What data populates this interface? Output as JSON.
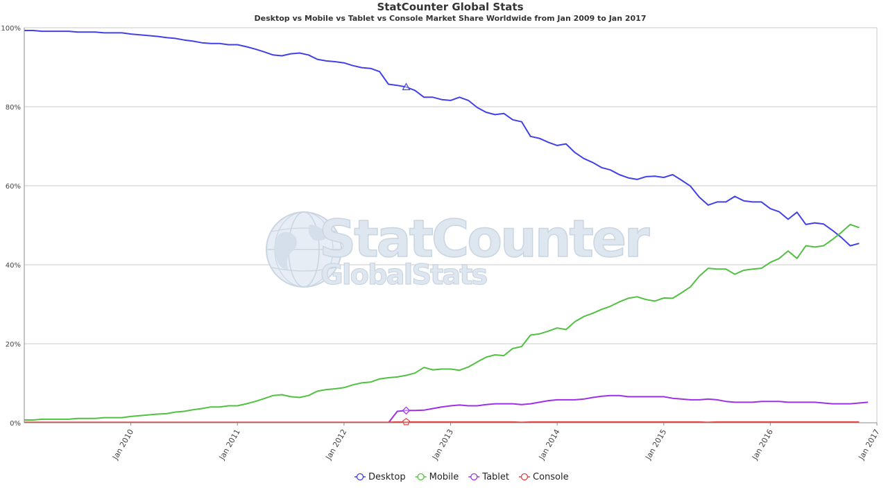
{
  "chart_data": {
    "type": "line",
    "title": "StatCounter Global Stats",
    "subtitle": "Desktop vs Mobile vs Tablet vs Console Market Share Worldwide from Jan 2009 to Jan 2017",
    "watermark": [
      "StatCounter",
      "GlobalStats"
    ],
    "x_start": "2009-01",
    "x_end": "2017-01",
    "x_tick_labels": [
      "Jan 2010",
      "Jan 2011",
      "Jan 2012",
      "Jan 2013",
      "Jan 2014",
      "Jan 2015",
      "Jan 2016",
      "Jan 2017"
    ],
    "y_tick_labels": [
      "0%",
      "20%",
      "40%",
      "60%",
      "80%",
      "100%"
    ],
    "ylim": [
      0,
      100
    ],
    "grid": true,
    "legend_position": "bottom-center",
    "series": [
      {
        "name": "Desktop",
        "color": "#4040e8",
        "marker": "triangle",
        "values": [
          99.3,
          99.3,
          99.1,
          99.1,
          99.1,
          99.1,
          98.9,
          98.9,
          98.9,
          98.7,
          98.7,
          98.7,
          98.4,
          98.2,
          98.0,
          97.8,
          97.5,
          97.3,
          96.9,
          96.6,
          96.2,
          96.0,
          96.0,
          95.7,
          95.7,
          95.2,
          94.6,
          93.9,
          93.1,
          92.9,
          93.4,
          93.6,
          93.1,
          92.0,
          91.6,
          91.4,
          91.1,
          90.4,
          89.9,
          89.7,
          88.9,
          85.7,
          85.4,
          85.0,
          84.1,
          82.4,
          82.4,
          81.8,
          81.6,
          82.4,
          81.6,
          79.8,
          78.6,
          78.0,
          78.3,
          76.7,
          76.2,
          72.5,
          72.0,
          71.0,
          70.2,
          70.6,
          68.4,
          66.9,
          65.9,
          64.6,
          64.0,
          62.8,
          62.0,
          61.6,
          62.3,
          62.4,
          62.1,
          62.8,
          61.4,
          59.9,
          57.1,
          55.1,
          55.9,
          55.9,
          57.3,
          56.2,
          55.9,
          55.9,
          54.2,
          53.4,
          51.5,
          53.3,
          50.2,
          50.6,
          50.3,
          48.7,
          46.9,
          44.8,
          45.4
        ]
      },
      {
        "name": "Mobile",
        "color": "#50c040",
        "marker": "circle",
        "values": [
          0.7,
          0.7,
          0.9,
          0.9,
          0.9,
          0.9,
          1.1,
          1.1,
          1.1,
          1.3,
          1.3,
          1.3,
          1.6,
          1.8,
          2.0,
          2.2,
          2.3,
          2.7,
          2.9,
          3.3,
          3.6,
          4.0,
          4.0,
          4.3,
          4.3,
          4.8,
          5.4,
          6.1,
          6.9,
          7.1,
          6.6,
          6.4,
          6.9,
          8.0,
          8.4,
          8.6,
          8.9,
          9.6,
          10.1,
          10.3,
          11.1,
          11.4,
          11.6,
          12.0,
          12.6,
          14.0,
          13.4,
          13.6,
          13.6,
          13.3,
          14.1,
          15.4,
          16.6,
          17.2,
          17.0,
          18.8,
          19.3,
          22.2,
          22.5,
          23.2,
          24.0,
          23.6,
          25.6,
          26.9,
          27.7,
          28.7,
          29.5,
          30.6,
          31.5,
          31.9,
          31.2,
          30.8,
          31.6,
          31.5,
          32.9,
          34.4,
          37.1,
          39.1,
          38.9,
          38.9,
          37.6,
          38.6,
          38.9,
          39.1,
          40.6,
          41.6,
          43.5,
          41.6,
          44.8,
          44.5,
          44.8,
          46.4,
          48.2,
          50.2,
          49.4
        ]
      },
      {
        "name": "Tablet",
        "color": "#9b30e8",
        "marker": "diamond",
        "start_index": 42,
        "values": [
          2.9,
          3.1,
          3.1,
          3.2,
          3.6,
          4.0,
          4.3,
          4.5,
          4.3,
          4.3,
          4.6,
          4.8,
          4.8,
          4.8,
          4.6,
          4.8,
          5.2,
          5.6,
          5.8,
          5.8,
          5.8,
          6.0,
          6.4,
          6.7,
          6.9,
          6.9,
          6.6,
          6.6,
          6.6,
          6.6,
          6.6,
          6.2,
          6.0,
          5.8,
          5.8,
          6.0,
          5.8,
          5.4,
          5.2,
          5.2,
          5.2,
          5.4,
          5.4,
          5.4,
          5.2,
          5.2,
          5.2,
          5.2,
          5.0,
          4.8,
          4.8,
          4.8,
          5.0,
          5.2
        ]
      },
      {
        "name": "Console",
        "color": "#e04040",
        "marker": "pentagon",
        "values": [
          0.1,
          0.1,
          0.1,
          0.1,
          0.1,
          0.1,
          0.1,
          0.1,
          0.1,
          0.1,
          0.1,
          0.1,
          0.1,
          0.1,
          0.1,
          0.1,
          0.1,
          0.1,
          0.1,
          0.1,
          0.1,
          0.1,
          0.1,
          0.1,
          0.1,
          0.1,
          0.1,
          0.1,
          0.1,
          0.1,
          0.1,
          0.1,
          0.1,
          0.1,
          0.1,
          0.1,
          0.1,
          0.1,
          0.1,
          0.1,
          0.1,
          0.1,
          0.2,
          0.2,
          0.2,
          0.2,
          0.2,
          0.2,
          0.2,
          0.2,
          0.2,
          0.2,
          0.2,
          0.2,
          0.2,
          0.2,
          0.1,
          0.2,
          0.2,
          0.2,
          0.2,
          0.2,
          0.2,
          0.2,
          0.2,
          0.2,
          0.2,
          0.2,
          0.2,
          0.2,
          0.2,
          0.2,
          0.2,
          0.2,
          0.2,
          0.2,
          0.2,
          0.1,
          0.2,
          0.2,
          0.2,
          0.2,
          0.2,
          0.2,
          0.2,
          0.2,
          0.2,
          0.2,
          0.2,
          0.2,
          0.2,
          0.2,
          0.2,
          0.2,
          0.2
        ]
      }
    ],
    "highlight_index": 43
  }
}
